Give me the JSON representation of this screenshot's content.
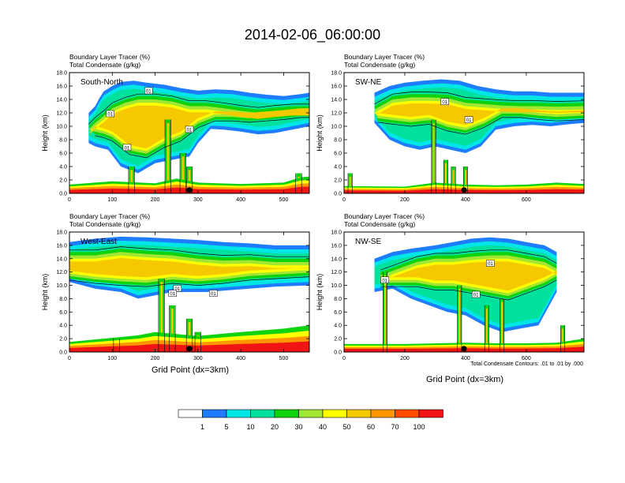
{
  "figure": {
    "title": "2014-02-06_06:00:00",
    "xlabel": "Grid Point (dx=3km)",
    "footnote": "Total Condensate Contours: .01 to .01 by .000",
    "colorbar": {
      "colors": [
        "#ffffff",
        "#1e7cff",
        "#00e6e6",
        "#00e19e",
        "#10d30f",
        "#a0e632",
        "#ffff00",
        "#f5c800",
        "#ff9600",
        "#ff4b00",
        "#f01414"
      ],
      "labels": [
        "1",
        "5",
        "10",
        "20",
        "30",
        "40",
        "50",
        "60",
        "70",
        "100"
      ]
    }
  },
  "chart_data": [
    {
      "type": "heatmap",
      "panel": "top-left",
      "label": "South-North",
      "left_title": "Boundary Layer Tracer   (%)",
      "left_subtitle": "Total Condensate   (g/kg)",
      "ylabel": "Height (km)",
      "xlim": [
        0,
        560
      ],
      "ylim": [
        0,
        18
      ],
      "xticks": [
        "0",
        "100",
        "200",
        "300",
        "400",
        "500"
      ],
      "yticks": [
        "0.0",
        "2.0",
        "4.0",
        "6.0",
        "8.0",
        "10.0",
        "12.0",
        "14.0",
        "16.0",
        "18.0"
      ],
      "contour_labels": [
        "01",
        "01",
        "01",
        "01"
      ],
      "marker_x": 280,
      "upper_cloud": [
        [
          45,
          12
        ],
        [
          60,
          13
        ],
        [
          70,
          14.2
        ],
        [
          80,
          15.2
        ],
        [
          100,
          16
        ],
        [
          120,
          16.6
        ],
        [
          150,
          16.8
        ],
        [
          180,
          16.5
        ],
        [
          220,
          16.2
        ],
        [
          260,
          15.7
        ],
        [
          300,
          15.3
        ],
        [
          340,
          15.5
        ],
        [
          380,
          15.4
        ],
        [
          420,
          15
        ],
        [
          460,
          14.7
        ],
        [
          500,
          14.5
        ],
        [
          540,
          14.8
        ],
        [
          560,
          15
        ]
      ],
      "cloud_bottom": [
        [
          45,
          7.5
        ],
        [
          60,
          7
        ],
        [
          90,
          6.5
        ],
        [
          120,
          4
        ],
        [
          160,
          3
        ],
        [
          200,
          4.5
        ],
        [
          240,
          5
        ],
        [
          280,
          5.5
        ],
        [
          300,
          7.5
        ],
        [
          330,
          9.6
        ],
        [
          360,
          9.5
        ],
        [
          400,
          9.2
        ],
        [
          440,
          8.8
        ],
        [
          480,
          9
        ],
        [
          520,
          9.5
        ],
        [
          560,
          10
        ]
      ],
      "core_top": [
        [
          45,
          10
        ],
        [
          60,
          11
        ],
        [
          80,
          12
        ],
        [
          100,
          13.2
        ],
        [
          130,
          14
        ],
        [
          160,
          14.5
        ],
        [
          200,
          14.5
        ],
        [
          240,
          14.2
        ],
        [
          280,
          13.5
        ],
        [
          320,
          13.5
        ],
        [
          360,
          13.2
        ],
        [
          400,
          12.8
        ],
        [
          440,
          12.5
        ],
        [
          480,
          12.8
        ],
        [
          520,
          13
        ],
        [
          560,
          13
        ]
      ],
      "core_bottom": [
        [
          60,
          8.8
        ],
        [
          80,
          8.5
        ],
        [
          100,
          8
        ],
        [
          140,
          6
        ],
        [
          180,
          5.5
        ],
        [
          220,
          7
        ],
        [
          260,
          8
        ],
        [
          300,
          10
        ],
        [
          340,
          11
        ],
        [
          380,
          11
        ],
        [
          420,
          10.8
        ],
        [
          460,
          11
        ],
        [
          500,
          11.2
        ],
        [
          540,
          11.5
        ],
        [
          560,
          11.5
        ]
      ],
      "towers": [
        [
          230,
          11
        ],
        [
          265,
          6
        ],
        [
          280,
          4
        ],
        [
          145,
          4
        ],
        [
          535,
          3
        ]
      ],
      "pbl_top": [
        [
          0,
          1.3
        ],
        [
          100,
          1.8
        ],
        [
          200,
          1.5
        ],
        [
          250,
          2.2
        ],
        [
          300,
          1.6
        ],
        [
          400,
          1.4
        ],
        [
          500,
          1.6
        ],
        [
          540,
          2.4
        ],
        [
          560,
          2.5
        ]
      ]
    },
    {
      "type": "heatmap",
      "panel": "top-right",
      "label": "SW-NE",
      "left_title": "Boundary Layer Tracer   (%)",
      "left_subtitle": "Total Condensate   (g/kg)",
      "ylabel": "Height (km)",
      "xlim": [
        0,
        790
      ],
      "ylim": [
        0,
        18
      ],
      "xticks": [
        "0",
        "200",
        "400",
        "600"
      ],
      "yticks": [
        "0.0",
        "2.0",
        "4.0",
        "6.0",
        "8.0",
        "10.0",
        "12.0",
        "14.0",
        "16.0",
        "18.0"
      ],
      "contour_labels": [
        "01",
        "01"
      ],
      "marker_x": 395,
      "upper_cloud": [
        [
          100,
          15
        ],
        [
          150,
          16
        ],
        [
          200,
          16.5
        ],
        [
          260,
          16.8
        ],
        [
          320,
          17
        ],
        [
          380,
          16.8
        ],
        [
          440,
          16
        ],
        [
          500,
          15.5
        ],
        [
          560,
          15.2
        ],
        [
          620,
          15.2
        ],
        [
          680,
          15
        ],
        [
          740,
          15
        ],
        [
          790,
          15
        ]
      ],
      "cloud_bottom": [
        [
          100,
          10.5
        ],
        [
          150,
          8
        ],
        [
          200,
          7
        ],
        [
          250,
          6.5
        ],
        [
          300,
          7
        ],
        [
          350,
          6.5
        ],
        [
          400,
          6
        ],
        [
          450,
          7
        ],
        [
          500,
          9.5
        ],
        [
          560,
          10
        ],
        [
          620,
          10.2
        ],
        [
          680,
          10
        ],
        [
          740,
          10.3
        ],
        [
          790,
          10.5
        ]
      ],
      "core_top": [
        [
          100,
          13
        ],
        [
          160,
          14.5
        ],
        [
          220,
          14.8
        ],
        [
          280,
          14.8
        ],
        [
          340,
          14.7
        ],
        [
          400,
          14
        ],
        [
          460,
          13.8
        ],
        [
          520,
          13.6
        ],
        [
          580,
          13.5
        ],
        [
          640,
          13.5
        ],
        [
          700,
          13.4
        ],
        [
          790,
          13.5
        ]
      ],
      "core_bottom": [
        [
          110,
          10.8
        ],
        [
          160,
          10.5
        ],
        [
          220,
          10.2
        ],
        [
          280,
          10.5
        ],
        [
          340,
          9.5
        ],
        [
          400,
          9
        ],
        [
          460,
          10
        ],
        [
          520,
          11.5
        ],
        [
          580,
          11.5
        ],
        [
          640,
          11.2
        ],
        [
          700,
          11
        ],
        [
          790,
          11.2
        ]
      ],
      "towers": [
        [
          295,
          11
        ],
        [
          335,
          5
        ],
        [
          360,
          4
        ],
        [
          400,
          4
        ],
        [
          20,
          3
        ]
      ],
      "pbl_top": [
        [
          0,
          1.1
        ],
        [
          200,
          1
        ],
        [
          300,
          1.6
        ],
        [
          400,
          1.3
        ],
        [
          500,
          1.2
        ],
        [
          600,
          1.3
        ],
        [
          700,
          1.6
        ],
        [
          790,
          1.4
        ]
      ]
    },
    {
      "type": "heatmap",
      "panel": "bottom-left",
      "label": "West-East",
      "left_title": "Boundary Layer Tracer   (%)",
      "left_subtitle": "Total Condensate   (g/kg)",
      "ylabel": "Height (km)",
      "xlim": [
        0,
        560
      ],
      "ylim": [
        0,
        18
      ],
      "xticks": [
        "0",
        "100",
        "200",
        "300",
        "400",
        "500"
      ],
      "yticks": [
        "0.0",
        "2.0",
        "4.0",
        "6.0",
        "8.0",
        "10.0",
        "12.0",
        "14.0",
        "16.0",
        "18.0"
      ],
      "contour_labels": [
        "01",
        "01",
        "01"
      ],
      "marker_x": 280,
      "upper_cloud": [
        [
          0,
          16.5
        ],
        [
          60,
          17
        ],
        [
          120,
          17.3
        ],
        [
          180,
          17.2
        ],
        [
          240,
          17
        ],
        [
          300,
          16.8
        ],
        [
          360,
          16.5
        ],
        [
          420,
          16.3
        ],
        [
          480,
          16
        ],
        [
          540,
          16
        ],
        [
          560,
          16
        ]
      ],
      "cloud_bottom": [
        [
          0,
          10.5
        ],
        [
          60,
          9.5
        ],
        [
          120,
          9
        ],
        [
          160,
          8
        ],
        [
          200,
          8.5
        ],
        [
          240,
          9
        ],
        [
          280,
          9
        ],
        [
          320,
          9
        ],
        [
          360,
          9.2
        ],
        [
          420,
          9.5
        ],
        [
          480,
          9.8
        ],
        [
          560,
          10
        ]
      ],
      "core_top": [
        [
          0,
          15
        ],
        [
          60,
          15
        ],
        [
          120,
          15.5
        ],
        [
          180,
          15.2
        ],
        [
          240,
          15
        ],
        [
          300,
          14.5
        ],
        [
          360,
          14.2
        ],
        [
          420,
          14.3
        ],
        [
          480,
          14
        ],
        [
          540,
          14
        ],
        [
          560,
          14
        ]
      ],
      "core_bottom": [
        [
          0,
          11
        ],
        [
          60,
          10.5
        ],
        [
          120,
          10.2
        ],
        [
          180,
          10
        ],
        [
          240,
          10.5
        ],
        [
          300,
          10.2
        ],
        [
          360,
          10.5
        ],
        [
          420,
          11
        ],
        [
          480,
          11.2
        ],
        [
          560,
          11.5
        ]
      ],
      "towers": [
        [
          215,
          11
        ],
        [
          240,
          7
        ],
        [
          280,
          5
        ],
        [
          300,
          3
        ],
        [
          110,
          2
        ]
      ],
      "pbl_top": [
        [
          0,
          1.5
        ],
        [
          80,
          2
        ],
        [
          160,
          2.5
        ],
        [
          200,
          3
        ],
        [
          300,
          2.4
        ],
        [
          400,
          3
        ],
        [
          500,
          3.5
        ],
        [
          560,
          4
        ]
      ]
    },
    {
      "type": "heatmap",
      "panel": "bottom-right",
      "label": "NW-SE",
      "left_title": "Boundary Layer Tracer   (%)",
      "left_subtitle": "Total Condensate   (g/kg)",
      "ylabel": "Height (km)",
      "xlim": [
        0,
        790
      ],
      "ylim": [
        0,
        18
      ],
      "xticks": [
        "0",
        "200",
        "400",
        "600"
      ],
      "yticks": [
        "0.0",
        "2.0",
        "4.0",
        "6.0",
        "8.0",
        "10.0",
        "12.0",
        "14.0",
        "16.0",
        "18.0"
      ],
      "contour_labels": [
        "01",
        "01",
        "01"
      ],
      "marker_x": 395,
      "upper_cloud": [
        [
          100,
          14
        ],
        [
          160,
          15
        ],
        [
          220,
          15.5
        ],
        [
          300,
          16
        ],
        [
          360,
          16.5
        ],
        [
          420,
          17
        ],
        [
          480,
          17.2
        ],
        [
          540,
          17
        ],
        [
          600,
          16.5
        ],
        [
          660,
          16
        ],
        [
          700,
          15
        ]
      ],
      "cloud_bottom": [
        [
          100,
          9
        ],
        [
          160,
          9.5
        ],
        [
          220,
          8
        ],
        [
          280,
          7
        ],
        [
          340,
          6
        ],
        [
          400,
          5.5
        ],
        [
          460,
          4
        ],
        [
          520,
          3
        ],
        [
          580,
          3.5
        ],
        [
          640,
          4
        ],
        [
          700,
          9
        ]
      ],
      "core_top": [
        [
          120,
          12
        ],
        [
          180,
          13
        ],
        [
          240,
          14
        ],
        [
          300,
          14.5
        ],
        [
          360,
          14.5
        ],
        [
          420,
          14.8
        ],
        [
          480,
          15
        ],
        [
          540,
          15
        ],
        [
          600,
          14.5
        ],
        [
          660,
          14
        ],
        [
          700,
          13
        ]
      ],
      "core_bottom": [
        [
          120,
          10
        ],
        [
          180,
          10
        ],
        [
          240,
          10
        ],
        [
          300,
          9.5
        ],
        [
          360,
          9.5
        ],
        [
          420,
          9
        ],
        [
          480,
          8.5
        ],
        [
          540,
          8
        ],
        [
          600,
          9
        ],
        [
          660,
          10
        ],
        [
          700,
          11
        ]
      ],
      "towers": [
        [
          135,
          12
        ],
        [
          380,
          10
        ],
        [
          470,
          7
        ],
        [
          520,
          8
        ],
        [
          720,
          4
        ]
      ],
      "pbl_top": [
        [
          0,
          1.2
        ],
        [
          200,
          1.2
        ],
        [
          400,
          1.4
        ],
        [
          500,
          1.3
        ],
        [
          600,
          1.3
        ],
        [
          700,
          1.4
        ],
        [
          790,
          2
        ]
      ]
    }
  ]
}
